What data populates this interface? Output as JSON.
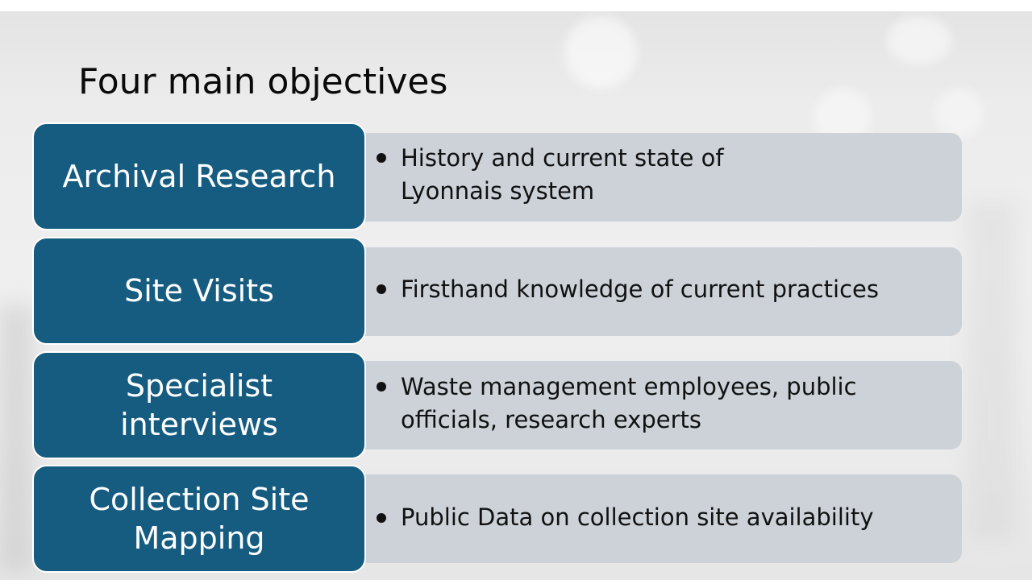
{
  "slide": {
    "title": "Four main objectives",
    "accent_color": "#165c80",
    "description_box_color": "#cdd2d9",
    "objectives": [
      {
        "label_lines": [
          "Archival Research"
        ],
        "bullet_lines": [
          "History and current state of",
          "Lyonnais system"
        ]
      },
      {
        "label_lines": [
          "Site Visits"
        ],
        "bullet_lines": [
          "Firsthand knowledge of current practices"
        ]
      },
      {
        "label_lines": [
          "Specialist",
          "interviews"
        ],
        "bullet_lines": [
          "Waste management employees, public",
          "officials, research experts"
        ]
      },
      {
        "label_lines": [
          "Collection Site",
          "Mapping"
        ],
        "bullet_lines": [
          "Public Data on collection site availability"
        ]
      }
    ]
  }
}
